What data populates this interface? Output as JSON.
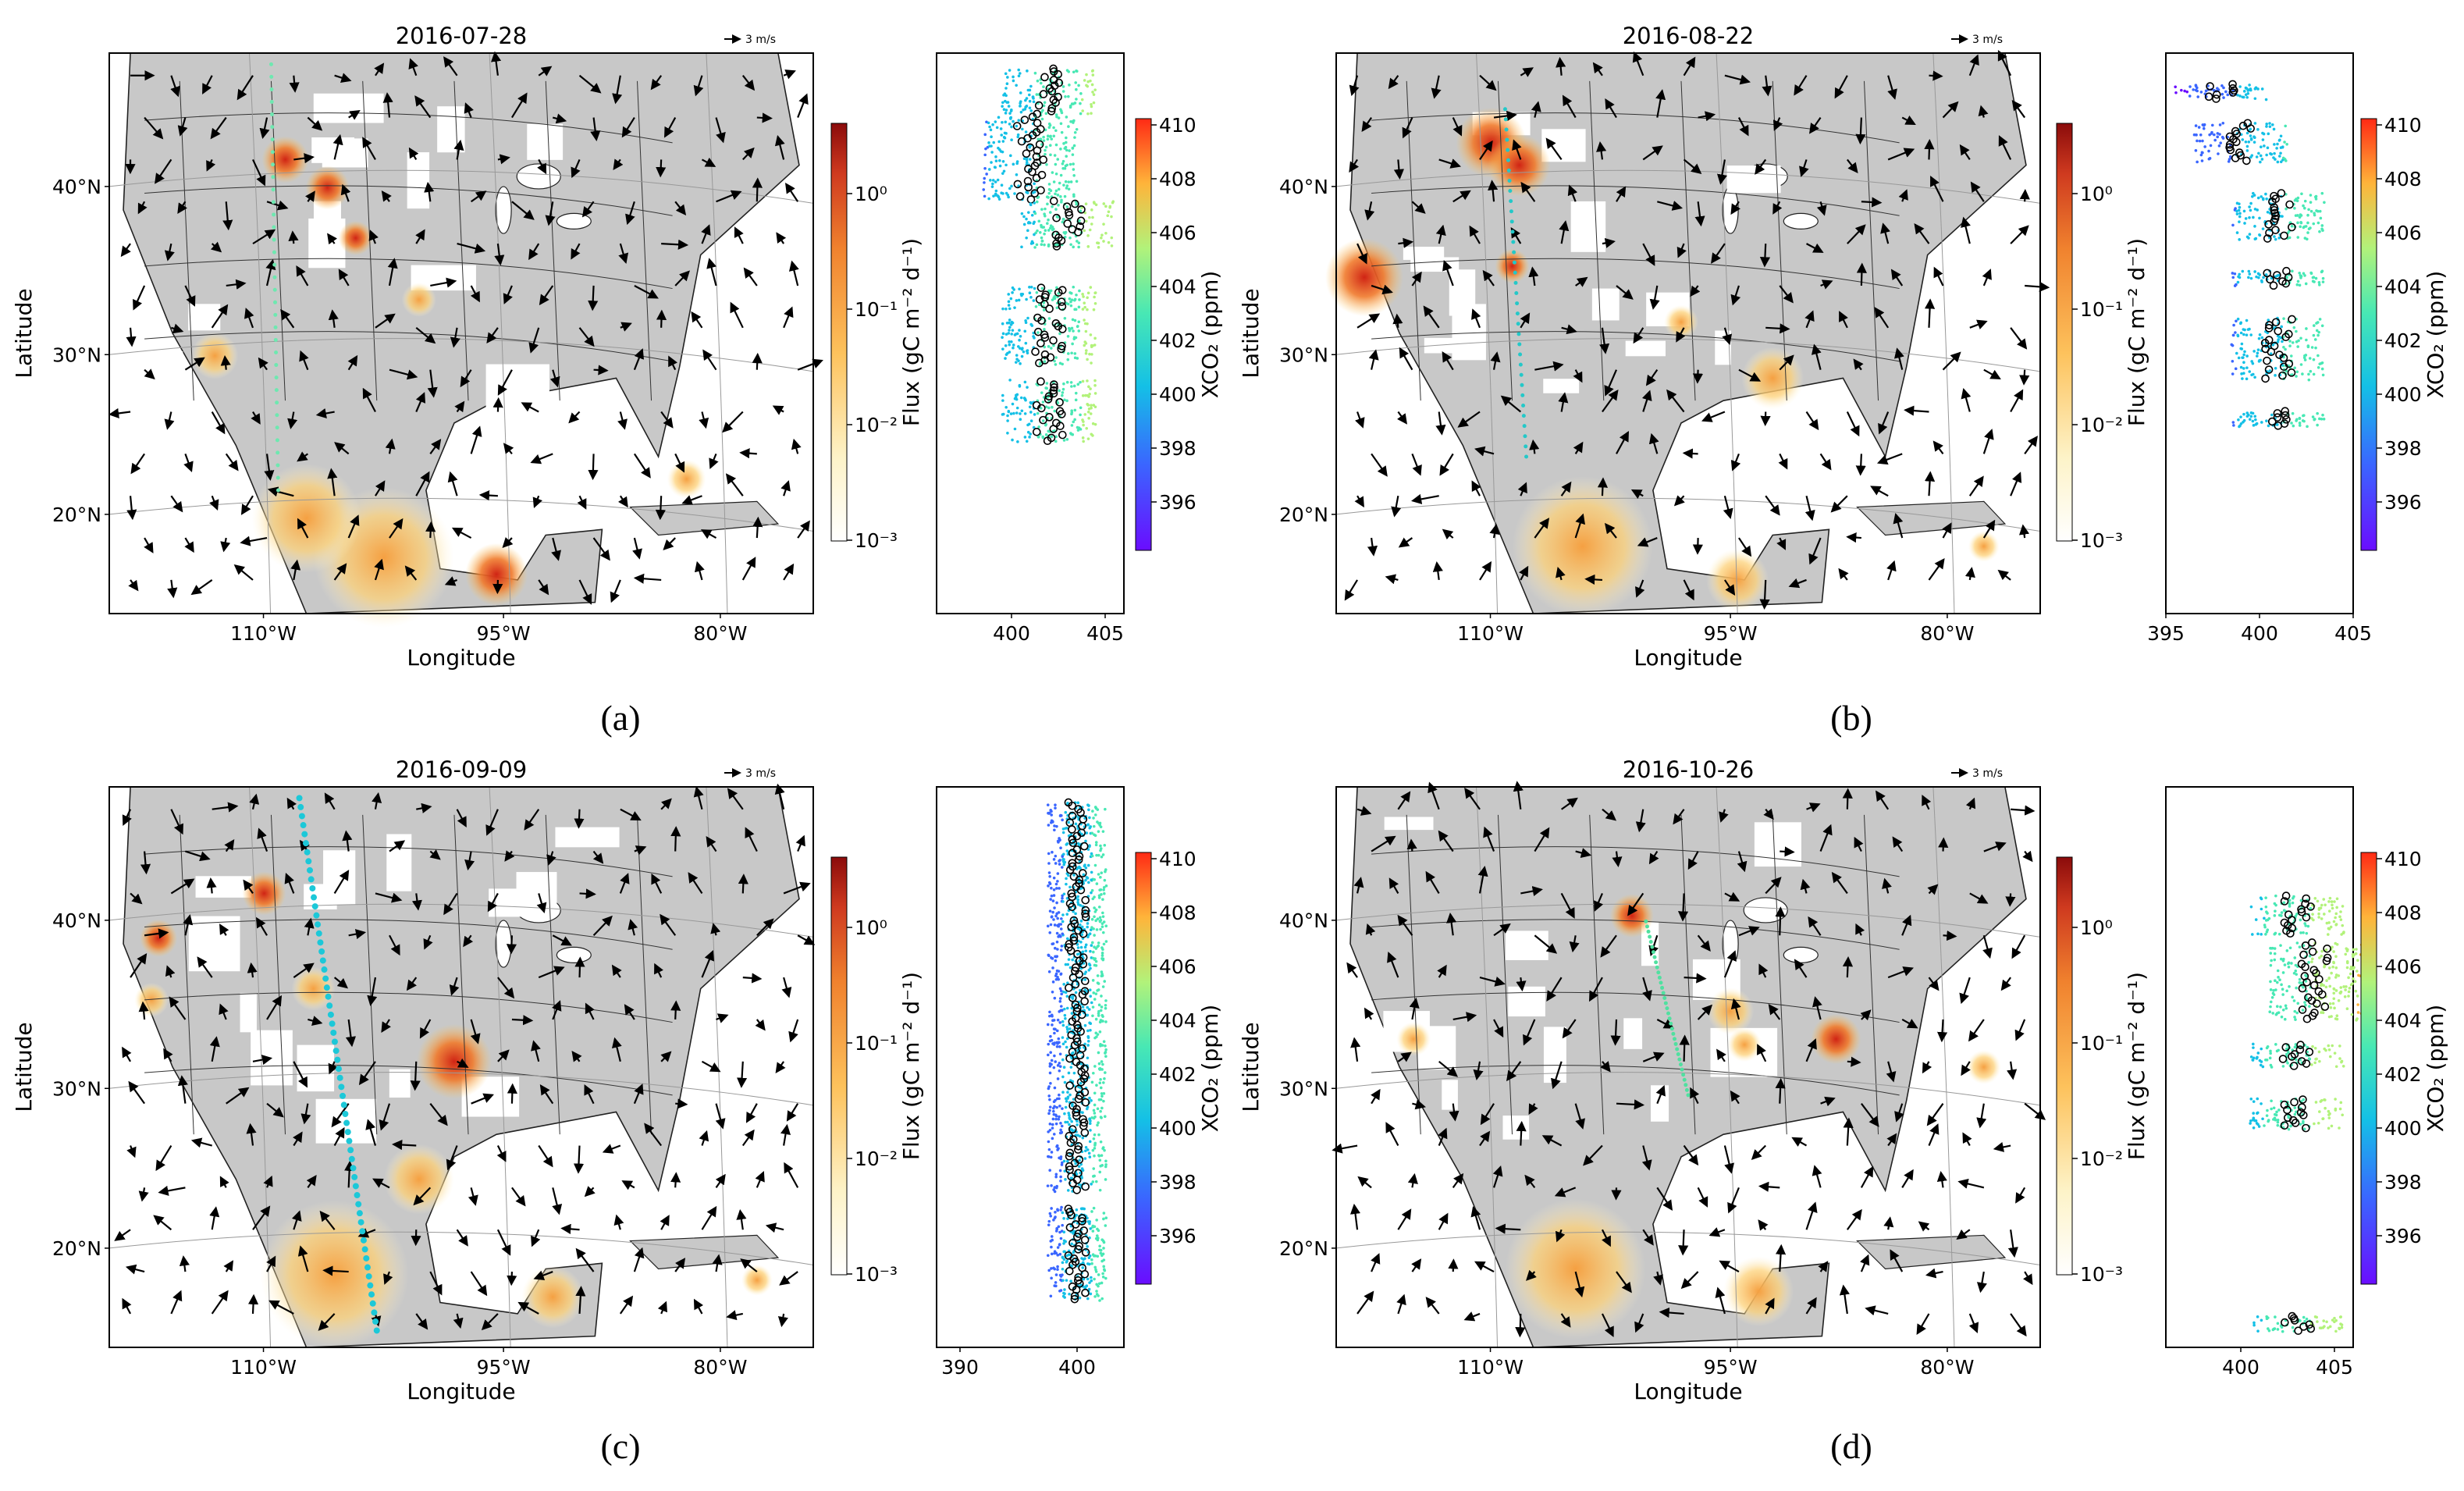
{
  "panels": [
    {
      "caption": "(a)",
      "date": "2016-07-28",
      "x_scale": "3 m/s",
      "map": {
        "lat_ticks": [
          "40°N",
          "30°N",
          "20°N"
        ],
        "lon_ticks": [
          "110°W",
          "95°W",
          "80°W"
        ],
        "xlabel": "Longitude",
        "ylabel": "Latitude"
      },
      "flux_colorbar": {
        "label": "Flux (gC m⁻² d⁻¹)",
        "ticks": [
          "10⁰",
          "10⁻¹",
          "10⁻²",
          "10⁻³"
        ]
      },
      "xco2_colorbar": {
        "label": "XCO₂ (ppm)",
        "ticks": [
          "410",
          "408",
          "406",
          "404",
          "402",
          "400",
          "398",
          "396"
        ]
      },
      "profile": {
        "xlim": [
          396,
          406
        ],
        "x_ticks": [
          "400",
          "405"
        ],
        "groups": [
          {
            "lat_range": [
              44,
              47
            ],
            "center": 402
          },
          {
            "lat_range": [
              38.5,
              44
            ],
            "center": 401
          },
          {
            "lat_range": [
              35.5,
              38.5
            ],
            "center": 403
          },
          {
            "lat_range": [
              31.5,
              33
            ],
            "center": 402
          },
          {
            "lat_range": [
              28,
              31
            ],
            "center": 402
          },
          {
            "lat_range": [
              23,
              27
            ],
            "center": 402
          }
        ]
      }
    },
    {
      "caption": "(b)",
      "date": "2016-08-22",
      "x_scale": "3 m/s",
      "map": {
        "lat_ticks": [
          "40°N",
          "30°N",
          "20°N"
        ],
        "lon_ticks": [
          "110°W",
          "95°W",
          "80°W"
        ],
        "xlabel": "Longitude",
        "ylabel": "Latitude"
      },
      "flux_colorbar": {
        "label": "Flux (gC m⁻² d⁻¹)",
        "ticks": [
          "10⁰",
          "10⁻¹",
          "10⁻²",
          "10⁻³"
        ]
      },
      "xco2_colorbar": {
        "label": "XCO₂ (ppm)",
        "ticks": [
          "410",
          "408",
          "406",
          "404",
          "402",
          "400",
          "398",
          "396"
        ]
      },
      "profile": {
        "xlim": [
          395,
          405
        ],
        "x_ticks": [
          "395",
          "400",
          "405"
        ],
        "groups": [
          {
            "lat_range": [
              45,
              46
            ],
            "center": 398
          },
          {
            "lat_range": [
              41,
              43.5
            ],
            "center": 399
          },
          {
            "lat_range": [
              36,
              39
            ],
            "center": 401
          },
          {
            "lat_range": [
              33,
              34
            ],
            "center": 401
          },
          {
            "lat_range": [
              27,
              31
            ],
            "center": 401
          },
          {
            "lat_range": [
              24,
              25
            ],
            "center": 401
          }
        ]
      }
    },
    {
      "caption": "(c)",
      "date": "2016-09-09",
      "x_scale": "3 m/s",
      "map": {
        "lat_ticks": [
          "40°N",
          "30°N",
          "20°N"
        ],
        "lon_ticks": [
          "110°W",
          "95°W",
          "80°W"
        ],
        "xlabel": "Longitude",
        "ylabel": "Latitude"
      },
      "flux_colorbar": {
        "label": "Flux (gC m⁻² d⁻¹)",
        "ticks": [
          "10⁰",
          "10⁻¹",
          "10⁻²",
          "10⁻³"
        ]
      },
      "xco2_colorbar": {
        "label": "XCO₂ (ppm)",
        "ticks": [
          "410",
          "408",
          "406",
          "404",
          "402",
          "400",
          "398",
          "396"
        ]
      },
      "profile": {
        "xlim": [
          388,
          404
        ],
        "x_ticks": [
          "390",
          "400"
        ],
        "groups": [
          {
            "lat_range": [
              22,
              47
            ],
            "center": 400
          },
          {
            "lat_range": [
              15,
              21
            ],
            "center": 400
          }
        ]
      }
    },
    {
      "caption": "(d)",
      "date": "2016-10-26",
      "x_scale": "3 m/s",
      "map": {
        "lat_ticks": [
          "40°N",
          "30°N",
          "20°N"
        ],
        "lon_ticks": [
          "110°W",
          "95°W",
          "80°W"
        ],
        "xlabel": "Longitude",
        "ylabel": "Latitude"
      },
      "flux_colorbar": {
        "label": "Flux (gC m⁻² d⁻¹)",
        "ticks": [
          "10⁰",
          "10⁻¹",
          "10⁻²",
          "10⁻³"
        ]
      },
      "xco2_colorbar": {
        "label": "XCO₂ (ppm)",
        "ticks": [
          "410",
          "408",
          "406",
          "404",
          "402",
          "400",
          "398",
          "396"
        ]
      },
      "profile": {
        "xlim": [
          396,
          406
        ],
        "x_ticks": [
          "400",
          "405"
        ],
        "groups": [
          {
            "lat_range": [
              38.5,
              41
            ],
            "center": 403
          },
          {
            "lat_range": [
              33,
              38
            ],
            "center": 404
          },
          {
            "lat_range": [
              30,
              31.5
            ],
            "center": 403
          },
          {
            "lat_range": [
              26,
              28
            ],
            "center": 403
          },
          {
            "lat_range": [
              13,
              14
            ],
            "center": 403
          }
        ]
      }
    }
  ]
}
